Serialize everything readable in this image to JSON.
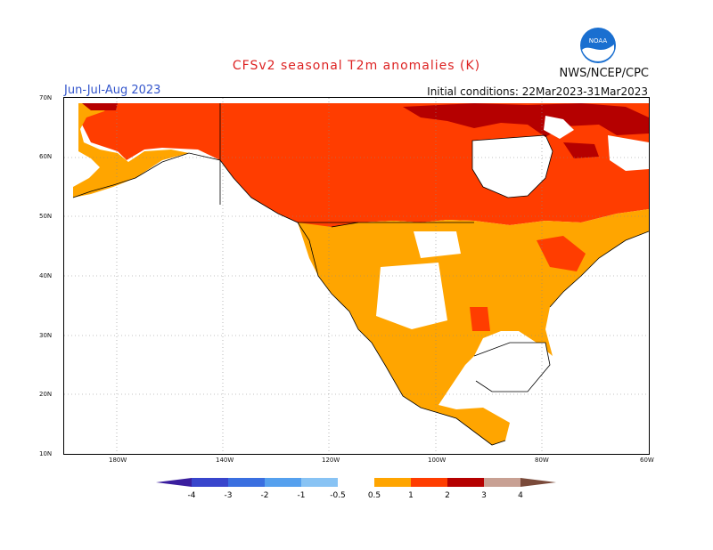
{
  "header": {
    "title": "CFSv2 seasonal T2m anomalies (K)",
    "agency": "NWS/NCEP/CPC",
    "season": "Jun-Jul-Aug 2023",
    "initial_conditions": "Initial conditions: 22Mar2023-31Mar2023",
    "logo_text": "NOAA"
  },
  "map": {
    "lat_labels": [
      "70N",
      "60N",
      "50N",
      "40N",
      "30N",
      "20N",
      "10N"
    ],
    "lon_labels": [
      "180W",
      "140W",
      "120W",
      "100W",
      "80W",
      "60W"
    ]
  },
  "legend": {
    "colors": [
      "#3a1e9e",
      "#3845cc",
      "#3a6fe0",
      "#55a0ee",
      "#88c3f4",
      "#ffffff",
      "#ffa500",
      "#ff3d00",
      "#b50000",
      "#c8a093",
      "#7a4a3a"
    ],
    "labels": [
      "-4",
      "-3",
      "-2",
      "-1",
      "-0.5",
      "0.5",
      "1",
      "2",
      "3",
      "4"
    ]
  }
}
